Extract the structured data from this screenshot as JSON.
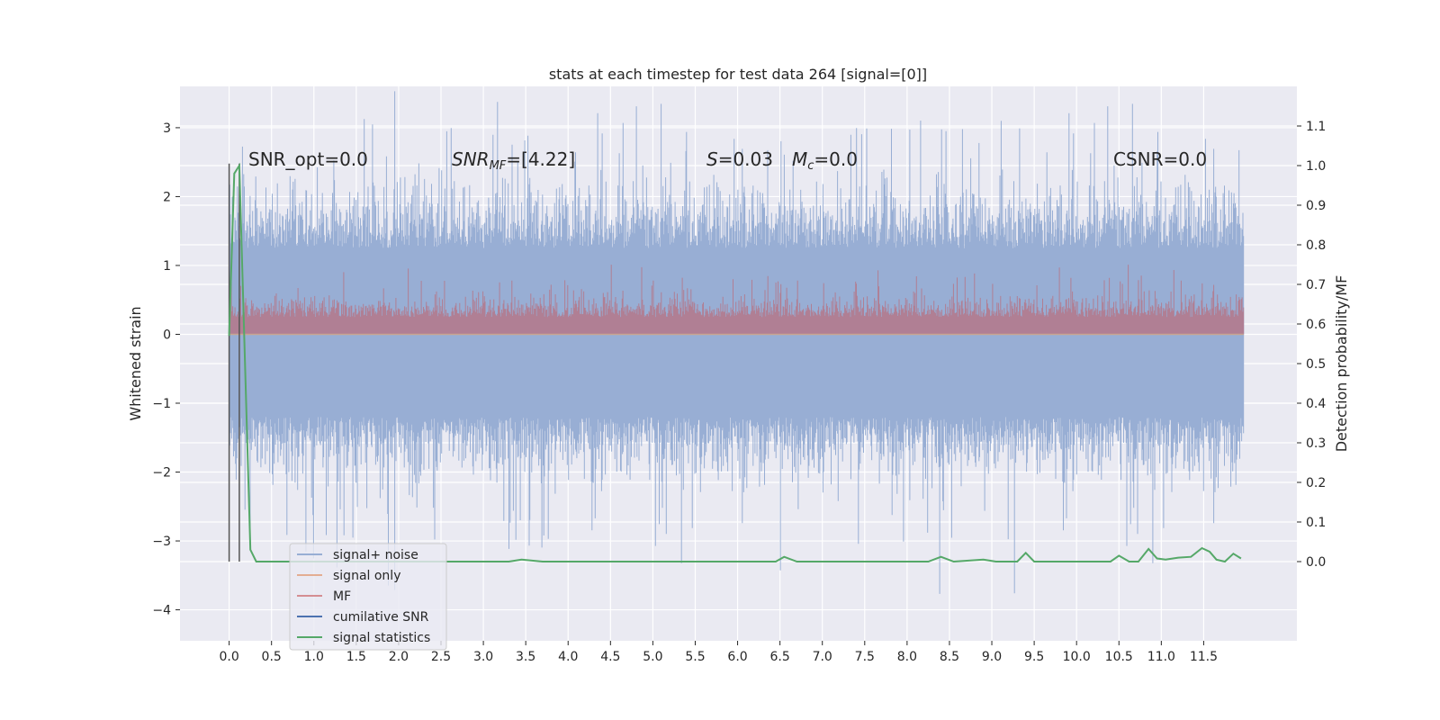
{
  "chart_data": {
    "type": "line",
    "title": "stats at each timestep for test data 264 [signal=[0]]",
    "xlabel": "",
    "ylabel": "Whitened strain",
    "ylabel_right": "Detection probability/MF",
    "xlim": [
      -0.58,
      12.6
    ],
    "ylim": [
      -4.45,
      3.6
    ],
    "ylim_right": [
      -0.2,
      1.2
    ],
    "x_ticks": [
      "0.0",
      "0.5",
      "1.0",
      "1.5",
      "2.0",
      "2.5",
      "3.0",
      "3.5",
      "4.0",
      "4.5",
      "5.0",
      "5.5",
      "6.0",
      "6.5",
      "7.0",
      "7.5",
      "8.0",
      "8.5",
      "9.0",
      "9.5",
      "10.0",
      "10.5",
      "11.0",
      "11.5"
    ],
    "y_ticks": [
      "3",
      "2",
      "1",
      "0",
      "−1",
      "−2",
      "−3",
      "−4"
    ],
    "y_ticks_right": [
      "1.1",
      "1.0",
      "0.9",
      "0.8",
      "0.7",
      "0.6",
      "0.5",
      "0.4",
      "0.3",
      "0.2",
      "0.1",
      "0.0"
    ],
    "grid": true,
    "legend_position": "lower-left",
    "series": [
      {
        "name": "signal+ noise",
        "color": "#4c72b0",
        "description_only": true
      },
      {
        "name": "signal only",
        "color": "#dd8452"
      },
      {
        "name": "MF",
        "color": "#c44e52"
      },
      {
        "name": "cumilative SNR",
        "color": "#4c72b0"
      },
      {
        "name": "signal statistics",
        "color": "#55a868",
        "x": [
          0.0,
          0.06,
          0.12,
          0.25,
          0.32,
          0.6,
          3.0,
          3.3,
          3.45,
          3.7,
          6.45,
          6.55,
          6.7,
          8.25,
          8.4,
          8.55,
          8.9,
          9.05,
          9.3,
          9.4,
          9.5,
          9.7,
          10.0,
          10.4,
          10.5,
          10.62,
          10.73,
          10.85,
          10.95,
          11.05,
          11.2,
          11.35,
          11.48,
          11.57,
          11.65,
          11.75,
          11.85,
          11.94
        ],
        "y": [
          0.57,
          0.98,
          1.0,
          0.03,
          0.0,
          0.0,
          0.0,
          0.0,
          0.005,
          0.0,
          0.0,
          0.012,
          0.0,
          0.0,
          0.012,
          0.0,
          0.005,
          0.0,
          0.0,
          0.022,
          0.0,
          0.0,
          0.0,
          0.0,
          0.015,
          0.0,
          0.0,
          0.032,
          0.008,
          0.005,
          0.01,
          0.012,
          0.034,
          0.025,
          0.005,
          0.0,
          0.02,
          0.008
        ]
      }
    ],
    "markers": [
      {
        "x": 0.0,
        "y_range": [
          -3.3,
          2.48
        ]
      },
      {
        "x": 0.12,
        "y_range": [
          -3.3,
          2.48
        ]
      }
    ],
    "annotations": {
      "snr_opt": "SNR_opt=0.0",
      "snr_mf_sym": "SNR",
      "snr_mf_sub": "MF",
      "snr_mf_val": "=[4.22]",
      "s_sym": "S",
      "s_val": "=0.03",
      "mc_sym": "M",
      "mc_sub": "c",
      "mc_val": "=0.0",
      "csnr": "CSNR=0.0"
    },
    "colors": {
      "plot_bg": "#eaeaf2",
      "noise": "#98aed4",
      "mf": "#b07f94",
      "signal_stats": "#55a868",
      "marker": "#555555"
    }
  }
}
